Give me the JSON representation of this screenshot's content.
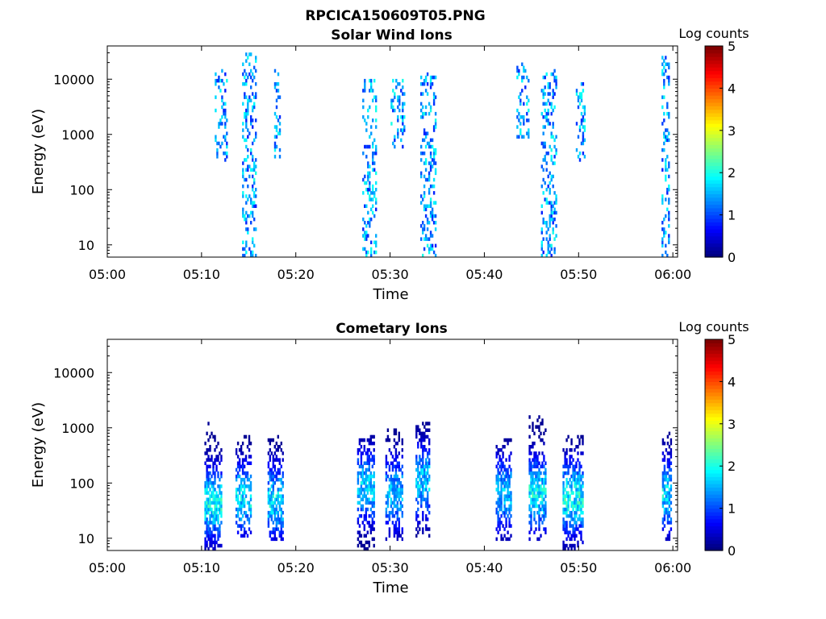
{
  "figure_title": "RPCICA150609T05.PNG",
  "colorbar": {
    "label": "Log counts",
    "ticks": [
      0,
      1,
      2,
      3,
      4,
      5
    ],
    "range": [
      0,
      5
    ],
    "colormap": "jet"
  },
  "chart_data": [
    {
      "type": "heatmap",
      "title": "Solar Wind Ions",
      "xlabel": "Time",
      "ylabel": "Energy (eV)",
      "x_tick_labels": [
        "05:00",
        "05:10",
        "05:20",
        "05:30",
        "05:40",
        "05:50",
        "06:00"
      ],
      "x_range_minutes": [
        0,
        60.5
      ],
      "y_scale": "log",
      "ylim": [
        6,
        40000
      ],
      "y_tick_labels": [
        "10",
        "100",
        "1000",
        "10000"
      ],
      "y_ticks": [
        10,
        100,
        1000,
        10000
      ],
      "bursts": [
        {
          "t": 12.0,
          "tw": 1.2,
          "emin": 300,
          "emax": 15000,
          "level": 0.8
        },
        {
          "t": 15.0,
          "tw": 1.4,
          "emin": 6,
          "emax": 30000,
          "level": 1.0
        },
        {
          "t": 18.0,
          "tw": 0.6,
          "emin": 300,
          "emax": 15000,
          "level": 0.7
        },
        {
          "t": 27.8,
          "tw": 1.5,
          "emin": 6,
          "emax": 10000,
          "level": 1.0
        },
        {
          "t": 30.8,
          "tw": 1.5,
          "emin": 500,
          "emax": 10000,
          "level": 0.8
        },
        {
          "t": 34.0,
          "tw": 1.6,
          "emin": 6,
          "emax": 12000,
          "level": 1.0
        },
        {
          "t": 44.0,
          "tw": 1.2,
          "emin": 800,
          "emax": 20000,
          "level": 0.8
        },
        {
          "t": 46.8,
          "tw": 1.6,
          "emin": 6,
          "emax": 15000,
          "level": 1.0
        },
        {
          "t": 50.2,
          "tw": 1.0,
          "emin": 300,
          "emax": 8000,
          "level": 0.8
        },
        {
          "t": 59.2,
          "tw": 0.8,
          "emin": 6,
          "emax": 25000,
          "level": 1.0
        }
      ]
    },
    {
      "type": "heatmap",
      "title": "Cometary Ions",
      "xlabel": "Time",
      "ylabel": "Energy (eV)",
      "x_tick_labels": [
        "05:00",
        "05:10",
        "05:20",
        "05:30",
        "05:40",
        "05:50",
        "06:00"
      ],
      "x_range_minutes": [
        0,
        60.5
      ],
      "y_scale": "log",
      "ylim": [
        6,
        40000
      ],
      "y_tick_labels": [
        "10",
        "100",
        "1000",
        "10000"
      ],
      "y_ticks": [
        10,
        100,
        1000,
        10000
      ],
      "bursts": [
        {
          "t": 11.2,
          "tw": 1.8,
          "emin": 6,
          "emax": 1200,
          "peak": 40,
          "level": 2.1
        },
        {
          "t": 14.4,
          "tw": 1.6,
          "emin": 10,
          "emax": 800,
          "peak": 50,
          "level": 2.0
        },
        {
          "t": 17.8,
          "tw": 1.6,
          "emin": 8,
          "emax": 800,
          "peak": 45,
          "level": 2.0
        },
        {
          "t": 27.4,
          "tw": 1.8,
          "emin": 6,
          "emax": 700,
          "peak": 80,
          "level": 1.9
        },
        {
          "t": 30.4,
          "tw": 1.8,
          "emin": 8,
          "emax": 900,
          "peak": 60,
          "level": 1.8
        },
        {
          "t": 33.4,
          "tw": 1.4,
          "emin": 10,
          "emax": 1200,
          "peak": 100,
          "level": 1.9
        },
        {
          "t": 42.0,
          "tw": 1.6,
          "emin": 8,
          "emax": 700,
          "peak": 60,
          "level": 1.8
        },
        {
          "t": 45.6,
          "tw": 1.8,
          "emin": 8,
          "emax": 1500,
          "peak": 60,
          "level": 2.1
        },
        {
          "t": 49.4,
          "tw": 2.2,
          "emin": 6,
          "emax": 700,
          "peak": 50,
          "level": 2.2
        },
        {
          "t": 59.3,
          "tw": 0.9,
          "emin": 8,
          "emax": 800,
          "peak": 60,
          "level": 2.0
        }
      ]
    }
  ]
}
